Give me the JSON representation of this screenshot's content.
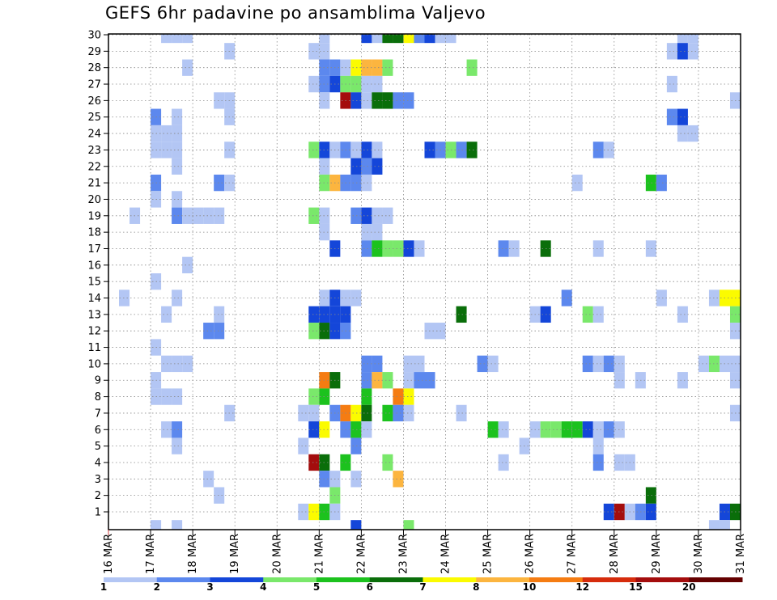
{
  "chart_data": {
    "type": "heatmap",
    "title": "GEFS 6hr padavine po ansamblima Valjevo",
    "y_ticks": [
      30,
      29,
      28,
      27,
      26,
      25,
      24,
      23,
      22,
      21,
      20,
      19,
      18,
      17,
      16,
      15,
      14,
      13,
      12,
      11,
      10,
      9,
      8,
      7,
      6,
      5,
      4,
      3,
      2,
      1
    ],
    "x_ticks": [
      "16 MAR",
      "17 MAR",
      "18 MAR",
      "19 MAR",
      "20 MAR",
      "21 MAR",
      "22 MAR",
      "23 MAR",
      "24 MAR",
      "25 MAR",
      "26 MAR",
      "27 MAR",
      "28 MAR",
      "29 MAR",
      "30 MAR",
      "31 MAR"
    ],
    "x_range_days": [
      16,
      31
    ],
    "y_range": [
      0,
      30
    ],
    "time_step": "6hr",
    "grid": true,
    "colorbar": {
      "labels": [
        "1",
        "2",
        "3",
        "4",
        "5",
        "6",
        "7",
        "8",
        "10",
        "12",
        "15",
        "20"
      ],
      "colors": [
        "#b3c6f4",
        "#5c88ee",
        "#1446d9",
        "#7ae86b",
        "#1cc21e",
        "#0a6e0a",
        "#fbfb00",
        "#fcb53f",
        "#f57c12",
        "#d62c0c",
        "#a40d0d",
        "#640000"
      ]
    },
    "cells": [
      [
        30,
        17.25,
        0
      ],
      [
        30,
        17.5,
        0
      ],
      [
        30,
        17.75,
        0
      ],
      [
        30,
        21.0,
        0
      ],
      [
        30,
        22.0,
        2
      ],
      [
        30,
        22.25,
        0
      ],
      [
        30,
        22.5,
        5
      ],
      [
        30,
        22.75,
        5
      ],
      [
        30,
        23.0,
        6
      ],
      [
        30,
        23.25,
        1
      ],
      [
        30,
        23.5,
        2
      ],
      [
        30,
        23.75,
        0
      ],
      [
        30,
        24.0,
        0
      ],
      [
        30,
        29.5,
        0
      ],
      [
        30,
        29.75,
        0
      ],
      [
        29,
        18.75,
        0
      ],
      [
        29,
        20.75,
        0
      ],
      [
        29,
        21.0,
        0
      ],
      [
        29,
        29.25,
        0
      ],
      [
        29,
        29.5,
        2
      ],
      [
        29,
        29.75,
        0
      ],
      [
        28,
        17.75,
        0
      ],
      [
        28,
        21.0,
        1
      ],
      [
        28,
        21.25,
        1
      ],
      [
        28,
        21.5,
        0
      ],
      [
        28,
        21.75,
        6
      ],
      [
        28,
        22.0,
        7
      ],
      [
        28,
        22.25,
        7
      ],
      [
        28,
        22.5,
        3
      ],
      [
        28,
        24.5,
        3
      ],
      [
        27,
        20.75,
        0
      ],
      [
        27,
        21.0,
        1
      ],
      [
        27,
        21.25,
        2
      ],
      [
        27,
        21.5,
        3
      ],
      [
        27,
        21.75,
        3
      ],
      [
        27,
        22.0,
        0
      ],
      [
        27,
        22.25,
        0
      ],
      [
        27,
        29.25,
        0
      ],
      [
        26,
        18.5,
        0
      ],
      [
        26,
        18.75,
        0
      ],
      [
        26,
        21.0,
        0
      ],
      [
        26,
        21.5,
        10
      ],
      [
        26,
        21.75,
        2
      ],
      [
        26,
        22.0,
        0
      ],
      [
        26,
        22.25,
        5
      ],
      [
        26,
        22.5,
        5
      ],
      [
        26,
        22.75,
        1
      ],
      [
        26,
        23.0,
        1
      ],
      [
        26,
        30.75,
        0
      ],
      [
        25,
        17.0,
        1
      ],
      [
        25,
        17.5,
        0
      ],
      [
        25,
        18.75,
        0
      ],
      [
        25,
        29.25,
        1
      ],
      [
        25,
        29.5,
        2
      ],
      [
        24,
        17.0,
        0
      ],
      [
        24,
        17.25,
        0
      ],
      [
        24,
        17.5,
        0
      ],
      [
        24,
        29.5,
        0
      ],
      [
        24,
        29.75,
        0
      ],
      [
        23,
        17.0,
        0
      ],
      [
        23,
        17.25,
        0
      ],
      [
        23,
        17.5,
        0
      ],
      [
        23,
        18.75,
        0
      ],
      [
        23,
        20.75,
        3
      ],
      [
        23,
        21.0,
        2
      ],
      [
        23,
        21.25,
        0
      ],
      [
        23,
        21.5,
        1
      ],
      [
        23,
        21.75,
        0
      ],
      [
        23,
        22.0,
        2
      ],
      [
        23,
        22.25,
        0
      ],
      [
        23,
        23.5,
        2
      ],
      [
        23,
        23.75,
        1
      ],
      [
        23,
        24.0,
        3
      ],
      [
        23,
        24.25,
        1
      ],
      [
        23,
        24.5,
        5
      ],
      [
        23,
        27.5,
        1
      ],
      [
        23,
        27.75,
        0
      ],
      [
        22,
        17.5,
        0
      ],
      [
        22,
        21.0,
        0
      ],
      [
        22,
        21.75,
        2
      ],
      [
        22,
        22.0,
        1
      ],
      [
        22,
        22.25,
        2
      ],
      [
        21,
        17.0,
        1
      ],
      [
        21,
        18.5,
        1
      ],
      [
        21,
        18.75,
        0
      ],
      [
        21,
        21.0,
        3
      ],
      [
        21,
        21.25,
        7
      ],
      [
        21,
        21.5,
        1
      ],
      [
        21,
        21.75,
        1
      ],
      [
        21,
        22.0,
        0
      ],
      [
        21,
        27.0,
        0
      ],
      [
        21,
        28.75,
        4
      ],
      [
        21,
        29.0,
        1
      ],
      [
        20,
        17.0,
        0
      ],
      [
        20,
        17.5,
        0
      ],
      [
        19,
        16.5,
        0
      ],
      [
        19,
        17.5,
        1
      ],
      [
        19,
        17.75,
        0
      ],
      [
        19,
        18.0,
        0
      ],
      [
        19,
        18.25,
        0
      ],
      [
        19,
        18.5,
        0
      ],
      [
        19,
        20.75,
        3
      ],
      [
        19,
        21.0,
        0
      ],
      [
        19,
        21.75,
        1
      ],
      [
        19,
        22.0,
        2
      ],
      [
        19,
        22.25,
        0
      ],
      [
        19,
        22.5,
        0
      ],
      [
        18,
        21.0,
        0
      ],
      [
        18,
        22.0,
        0
      ],
      [
        18,
        22.25,
        0
      ],
      [
        17,
        21.25,
        2
      ],
      [
        17,
        22.0,
        1
      ],
      [
        17,
        22.25,
        4
      ],
      [
        17,
        22.5,
        3
      ],
      [
        17,
        22.75,
        3
      ],
      [
        17,
        23.0,
        2
      ],
      [
        17,
        23.25,
        0
      ],
      [
        17,
        25.25,
        1
      ],
      [
        17,
        25.5,
        0
      ],
      [
        17,
        26.25,
        5
      ],
      [
        17,
        27.5,
        0
      ],
      [
        17,
        28.75,
        0
      ],
      [
        16,
        17.75,
        0
      ],
      [
        15,
        17.0,
        0
      ],
      [
        14,
        16.25,
        0
      ],
      [
        14,
        17.5,
        0
      ],
      [
        14,
        21.0,
        0
      ],
      [
        14,
        21.25,
        2
      ],
      [
        14,
        21.5,
        0
      ],
      [
        14,
        21.75,
        0
      ],
      [
        14,
        26.75,
        1
      ],
      [
        14,
        29.0,
        0
      ],
      [
        14,
        30.25,
        0
      ],
      [
        14,
        30.5,
        6
      ],
      [
        14,
        30.75,
        6
      ],
      [
        13,
        17.25,
        0
      ],
      [
        13,
        18.5,
        0
      ],
      [
        13,
        20.75,
        2
      ],
      [
        13,
        21.0,
        2
      ],
      [
        13,
        21.25,
        2
      ],
      [
        13,
        21.5,
        2
      ],
      [
        13,
        24.25,
        5
      ],
      [
        13,
        26.0,
        0
      ],
      [
        13,
        26.25,
        2
      ],
      [
        13,
        27.25,
        3
      ],
      [
        13,
        27.5,
        0
      ],
      [
        13,
        29.5,
        0
      ],
      [
        13,
        30.75,
        3
      ],
      [
        12,
        18.25,
        1
      ],
      [
        12,
        18.5,
        1
      ],
      [
        12,
        20.75,
        3
      ],
      [
        12,
        21.0,
        5
      ],
      [
        12,
        21.25,
        2
      ],
      [
        12,
        21.5,
        1
      ],
      [
        12,
        23.5,
        0
      ],
      [
        12,
        23.75,
        0
      ],
      [
        12,
        30.75,
        0
      ],
      [
        11,
        17.0,
        0
      ],
      [
        10,
        17.25,
        0
      ],
      [
        10,
        17.5,
        0
      ],
      [
        10,
        17.75,
        0
      ],
      [
        10,
        22.0,
        1
      ],
      [
        10,
        22.25,
        1
      ],
      [
        10,
        23.0,
        0
      ],
      [
        10,
        23.25,
        0
      ],
      [
        10,
        24.75,
        1
      ],
      [
        10,
        25.0,
        0
      ],
      [
        10,
        27.25,
        1
      ],
      [
        10,
        27.5,
        0
      ],
      [
        10,
        27.75,
        1
      ],
      [
        10,
        28.0,
        0
      ],
      [
        10,
        30.0,
        0
      ],
      [
        10,
        30.25,
        3
      ],
      [
        10,
        30.5,
        0
      ],
      [
        10,
        30.75,
        0
      ],
      [
        9,
        17.0,
        0
      ],
      [
        9,
        21.0,
        8
      ],
      [
        9,
        21.25,
        5
      ],
      [
        9,
        22.0,
        1
      ],
      [
        9,
        22.25,
        7
      ],
      [
        9,
        22.5,
        3
      ],
      [
        9,
        23.0,
        0
      ],
      [
        9,
        23.25,
        1
      ],
      [
        9,
        23.5,
        1
      ],
      [
        9,
        28.0,
        0
      ],
      [
        9,
        28.5,
        0
      ],
      [
        9,
        29.5,
        0
      ],
      [
        9,
        30.75,
        0
      ],
      [
        8,
        17.0,
        0
      ],
      [
        8,
        17.25,
        0
      ],
      [
        8,
        17.5,
        0
      ],
      [
        8,
        20.75,
        3
      ],
      [
        8,
        21.0,
        4
      ],
      [
        8,
        22.0,
        4
      ],
      [
        8,
        22.75,
        8
      ],
      [
        8,
        23.0,
        6
      ],
      [
        7,
        18.75,
        0
      ],
      [
        7,
        20.5,
        0
      ],
      [
        7,
        20.75,
        0
      ],
      [
        7,
        21.25,
        1
      ],
      [
        7,
        21.5,
        8
      ],
      [
        7,
        21.75,
        6
      ],
      [
        7,
        22.0,
        5
      ],
      [
        7,
        22.5,
        4
      ],
      [
        7,
        22.75,
        1
      ],
      [
        7,
        23.0,
        0
      ],
      [
        7,
        24.25,
        0
      ],
      [
        7,
        30.75,
        0
      ],
      [
        6,
        17.25,
        0
      ],
      [
        6,
        17.5,
        1
      ],
      [
        6,
        20.75,
        2
      ],
      [
        6,
        21.0,
        6
      ],
      [
        6,
        21.5,
        1
      ],
      [
        6,
        21.75,
        4
      ],
      [
        6,
        22.0,
        0
      ],
      [
        6,
        25.0,
        4
      ],
      [
        6,
        25.25,
        0
      ],
      [
        6,
        26.0,
        0
      ],
      [
        6,
        26.25,
        3
      ],
      [
        6,
        26.5,
        3
      ],
      [
        6,
        26.75,
        4
      ],
      [
        6,
        27.0,
        4
      ],
      [
        6,
        27.25,
        2
      ],
      [
        6,
        27.5,
        0
      ],
      [
        6,
        27.75,
        1
      ],
      [
        6,
        28.0,
        0
      ],
      [
        5,
        17.5,
        0
      ],
      [
        5,
        20.5,
        0
      ],
      [
        5,
        21.75,
        1
      ],
      [
        5,
        25.75,
        0
      ],
      [
        5,
        27.5,
        0
      ],
      [
        4,
        20.75,
        10
      ],
      [
        4,
        21.0,
        5
      ],
      [
        4,
        21.5,
        4
      ],
      [
        4,
        22.5,
        3
      ],
      [
        4,
        25.25,
        0
      ],
      [
        4,
        27.5,
        1
      ],
      [
        4,
        28.0,
        0
      ],
      [
        4,
        28.25,
        0
      ],
      [
        3,
        18.25,
        0
      ],
      [
        3,
        21.0,
        1
      ],
      [
        3,
        21.25,
        0
      ],
      [
        3,
        21.75,
        0
      ],
      [
        3,
        22.75,
        7
      ],
      [
        2,
        18.5,
        0
      ],
      [
        2,
        21.25,
        3
      ],
      [
        2,
        28.75,
        5
      ],
      [
        1,
        20.5,
        0
      ],
      [
        1,
        20.75,
        6
      ],
      [
        1,
        21.0,
        4
      ],
      [
        1,
        21.25,
        0
      ],
      [
        1,
        27.75,
        2
      ],
      [
        1,
        28.0,
        10
      ],
      [
        1,
        28.25,
        0
      ],
      [
        1,
        28.5,
        1
      ],
      [
        1,
        28.75,
        2
      ],
      [
        1,
        30.5,
        2
      ],
      [
        1,
        30.75,
        5
      ],
      [
        0,
        17.0,
        0
      ],
      [
        0,
        17.5,
        0
      ],
      [
        0,
        21.75,
        2
      ],
      [
        0,
        23.0,
        3
      ],
      [
        0,
        30.25,
        0
      ],
      [
        0,
        30.5,
        0
      ]
    ]
  }
}
